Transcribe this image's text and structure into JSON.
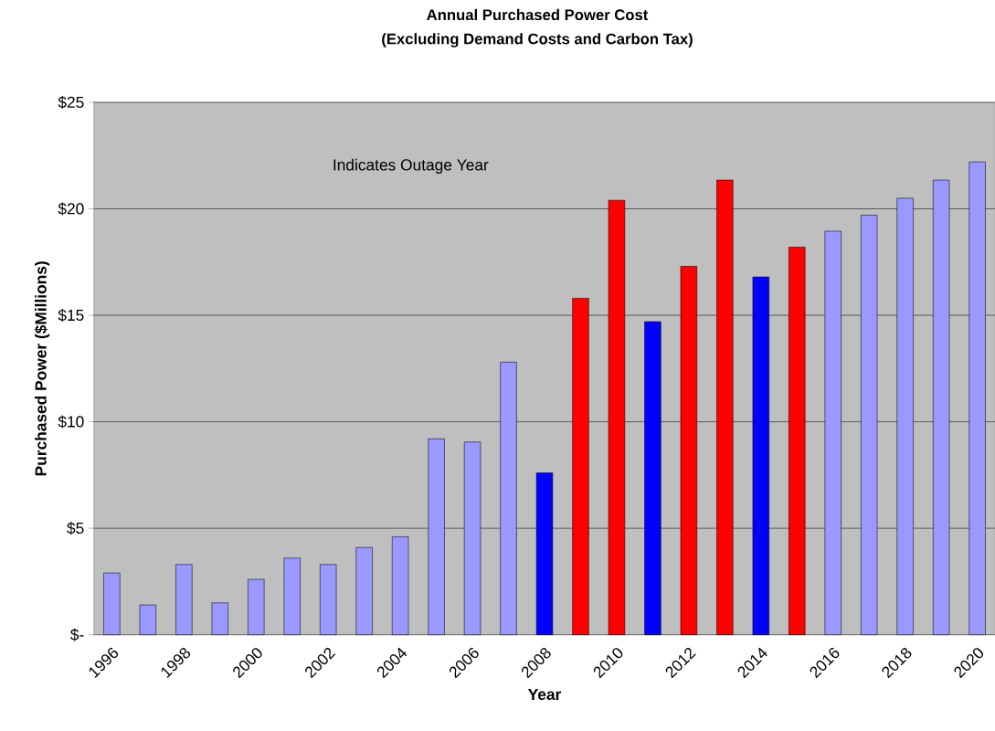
{
  "chart_data": {
    "type": "bar",
    "title": "Annual Purchased Power Cost",
    "subtitle": "(Excluding Demand Costs and Carbon Tax)",
    "xlabel": "Year",
    "ylabel": "Purchased Power ($Millions)",
    "categories": [
      "1996",
      null,
      "1998",
      null,
      "2000",
      null,
      "2002",
      null,
      "2004",
      null,
      "2006",
      null,
      "2008",
      null,
      "2010",
      null,
      "2012",
      null,
      "2014",
      null,
      "2016",
      null,
      "2018",
      null,
      "2020"
    ],
    "values": [
      2.9,
      1.4,
      3.3,
      1.5,
      2.6,
      3.6,
      3.3,
      4.1,
      4.6,
      9.2,
      9.05,
      12.8,
      7.6,
      15.8,
      20.4,
      14.7,
      17.3,
      21.35,
      16.8,
      18.2,
      18.95,
      19.7,
      20.5,
      21.35,
      22.2
    ],
    "colors": [
      "#9999ff",
      "#9999ff",
      "#9999ff",
      "#9999ff",
      "#9999ff",
      "#9999ff",
      "#9999ff",
      "#9999ff",
      "#9999ff",
      "#9999ff",
      "#9999ff",
      "#9999ff",
      "#0000ff",
      "#ff0000",
      "#ff0000",
      "#0000ff",
      "#ff0000",
      "#ff0000",
      "#0000ff",
      "#ff0000",
      "#9999ff",
      "#9999ff",
      "#9999ff",
      "#9999ff",
      "#9999ff"
    ],
    "ylim": [
      0,
      25
    ],
    "yticks": [
      {
        "value": 0,
        "label": "$-"
      },
      {
        "value": 5,
        "label": "$5"
      },
      {
        "value": 10,
        "label": "$10"
      },
      {
        "value": 15,
        "label": "$15"
      },
      {
        "value": 20,
        "label": "$20"
      },
      {
        "value": 25,
        "label": "$25"
      }
    ],
    "grid": "y",
    "annotations": [
      "Indicates Outage Year"
    ]
  }
}
